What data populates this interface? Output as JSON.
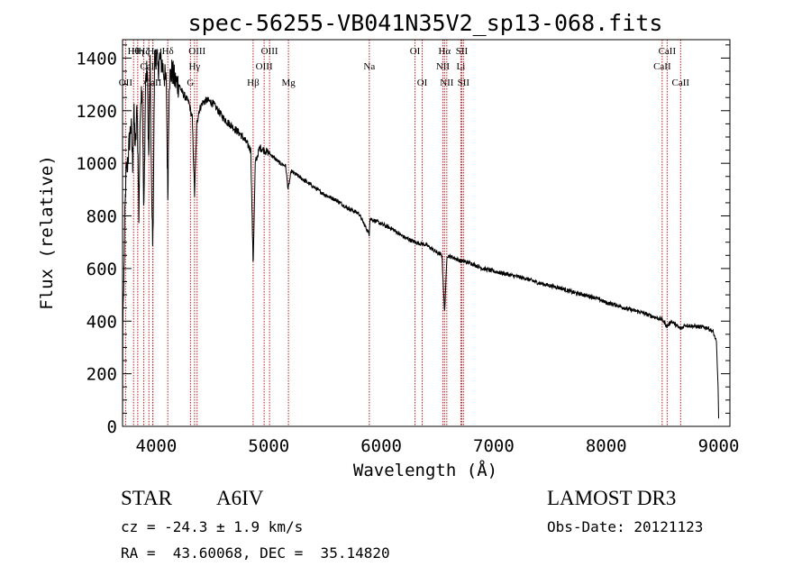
{
  "chart_data": {
    "type": "line",
    "title": "spec-56255-VB041N35V2_sp13-068.fits",
    "xlabel": "Wavelength (Å)",
    "ylabel": "Flux (relative)",
    "xlim": [
      3700,
      9100
    ],
    "ylim": [
      0,
      1470
    ],
    "xticks": [
      4000,
      5000,
      6000,
      7000,
      8000,
      9000
    ],
    "yticks": [
      0,
      200,
      400,
      600,
      800,
      1000,
      1200,
      1400
    ],
    "grid": false,
    "spectrum_anchor_points": [
      [
        3700,
        0
      ],
      [
        3703,
        440
      ],
      [
        3710,
        520
      ],
      [
        3720,
        780
      ],
      [
        3730,
        950
      ],
      [
        3745,
        1000
      ],
      [
        3760,
        1080
      ],
      [
        3775,
        1150
      ],
      [
        3790,
        1000
      ],
      [
        3800,
        1200
      ],
      [
        3815,
        1050
      ],
      [
        3830,
        1230
      ],
      [
        3845,
        800
      ],
      [
        3860,
        1250
      ],
      [
        3875,
        1300
      ],
      [
        3889,
        780
      ],
      [
        3905,
        1320
      ],
      [
        3920,
        1350
      ],
      [
        3933,
        1000
      ],
      [
        3945,
        1380
      ],
      [
        3960,
        820
      ],
      [
        3970,
        700
      ],
      [
        3985,
        1390
      ],
      [
        4000,
        1420
      ],
      [
        4015,
        1350
      ],
      [
        4030,
        1400
      ],
      [
        4050,
        1380
      ],
      [
        4070,
        1340
      ],
      [
        4090,
        1300
      ],
      [
        4102,
        860
      ],
      [
        4115,
        1320
      ],
      [
        4140,
        1350
      ],
      [
        4170,
        1310
      ],
      [
        4200,
        1300
      ],
      [
        4230,
        1270
      ],
      [
        4260,
        1250
      ],
      [
        4290,
        1230
      ],
      [
        4320,
        1170
      ],
      [
        4340,
        880
      ],
      [
        4360,
        1150
      ],
      [
        4380,
        1200
      ],
      [
        4410,
        1230
      ],
      [
        4450,
        1240
      ],
      [
        4500,
        1230
      ],
      [
        4550,
        1200
      ],
      [
        4600,
        1170
      ],
      [
        4650,
        1150
      ],
      [
        4700,
        1130
      ],
      [
        4750,
        1110
      ],
      [
        4800,
        1080
      ],
      [
        4840,
        1050
      ],
      [
        4861,
        610
      ],
      [
        4880,
        1000
      ],
      [
        4920,
        1060
      ],
      [
        4960,
        1050
      ],
      [
        5000,
        1040
      ],
      [
        5050,
        1020
      ],
      [
        5100,
        1000
      ],
      [
        5150,
        990
      ],
      [
        5172,
        900
      ],
      [
        5200,
        970
      ],
      [
        5300,
        940
      ],
      [
        5400,
        910
      ],
      [
        5500,
        880
      ],
      [
        5600,
        860
      ],
      [
        5700,
        830
      ],
      [
        5800,
        810
      ],
      [
        5893,
        730
      ],
      [
        5900,
        790
      ],
      [
        6000,
        770
      ],
      [
        6100,
        750
      ],
      [
        6200,
        720
      ],
      [
        6300,
        700
      ],
      [
        6400,
        690
      ],
      [
        6500,
        660
      ],
      [
        6540,
        650
      ],
      [
        6563,
        430
      ],
      [
        6585,
        650
      ],
      [
        6650,
        640
      ],
      [
        6700,
        630
      ],
      [
        6800,
        620
      ],
      [
        6900,
        600
      ],
      [
        7000,
        590
      ],
      [
        7100,
        580
      ],
      [
        7200,
        570
      ],
      [
        7300,
        560
      ],
      [
        7400,
        545
      ],
      [
        7500,
        535
      ],
      [
        7600,
        525
      ],
      [
        7700,
        510
      ],
      [
        7800,
        500
      ],
      [
        7900,
        490
      ],
      [
        8000,
        470
      ],
      [
        8100,
        460
      ],
      [
        8200,
        445
      ],
      [
        8300,
        435
      ],
      [
        8400,
        420
      ],
      [
        8500,
        405
      ],
      [
        8542,
        380
      ],
      [
        8580,
        400
      ],
      [
        8662,
        370
      ],
      [
        8700,
        385
      ],
      [
        8800,
        380
      ],
      [
        8900,
        375
      ],
      [
        8950,
        360
      ],
      [
        8980,
        320
      ],
      [
        8995,
        150
      ],
      [
        9000,
        30
      ]
    ],
    "line_markers": [
      {
        "label": "Hα",
        "x": 6563,
        "row": 1
      },
      {
        "label": "Hβ",
        "x": 4861,
        "row": 3
      },
      {
        "label": "Hγ",
        "x": 4340,
        "row": 2
      },
      {
        "label": "Hδ",
        "x": 4102,
        "row": 1
      },
      {
        "label": "Hε",
        "x": 3970,
        "row": 1
      },
      {
        "label": "Hζ",
        "x": 3889,
        "row": 1
      },
      {
        "label": "Hη",
        "x": 3835,
        "row": 1
      },
      {
        "label": "Hθ",
        "x": 3798,
        "row": 1
      },
      {
        "label": "OII",
        "x": 3727,
        "row": 3
      },
      {
        "label": "OIII",
        "x": 4363,
        "row": 1
      },
      {
        "label": "OIII",
        "x": 4959,
        "row": 2
      },
      {
        "label": "OIII",
        "x": 5007,
        "row": 1
      },
      {
        "label": "CaII",
        "x": 3934,
        "row": 2
      },
      {
        "label": "CaII",
        "x": 3969,
        "row": 3
      },
      {
        "label": "G",
        "x": 4304,
        "row": 3
      },
      {
        "label": "Mg",
        "x": 5175,
        "row": 3
      },
      {
        "label": "Na",
        "x": 5894,
        "row": 2
      },
      {
        "label": "OI",
        "x": 6300,
        "row": 1
      },
      {
        "label": "OI",
        "x": 6364,
        "row": 3
      },
      {
        "label": "NII",
        "x": 6548,
        "row": 2
      },
      {
        "label": "NII",
        "x": 6583,
        "row": 3
      },
      {
        "label": "SII",
        "x": 6716,
        "row": 1
      },
      {
        "label": "SII",
        "x": 6731,
        "row": 3
      },
      {
        "label": "Li",
        "x": 6708,
        "row": 2
      },
      {
        "label": "CaII",
        "x": 8498,
        "row": 2
      },
      {
        "label": "CaII",
        "x": 8542,
        "row": 1
      },
      {
        "label": "CaII",
        "x": 8662,
        "row": 3
      }
    ],
    "colors": {
      "spectrum": "#000000",
      "marker_line": "#c01818",
      "axis": "#000000"
    }
  },
  "info": {
    "object_class": "STAR",
    "subclass": "A6IV",
    "survey": "LAMOST DR3",
    "cz": "cz = -24.3 ± 1.9 km/s",
    "obs_date": "Obs-Date: 20121123",
    "coords": "RA =  43.60068, DEC =  35.14820"
  }
}
